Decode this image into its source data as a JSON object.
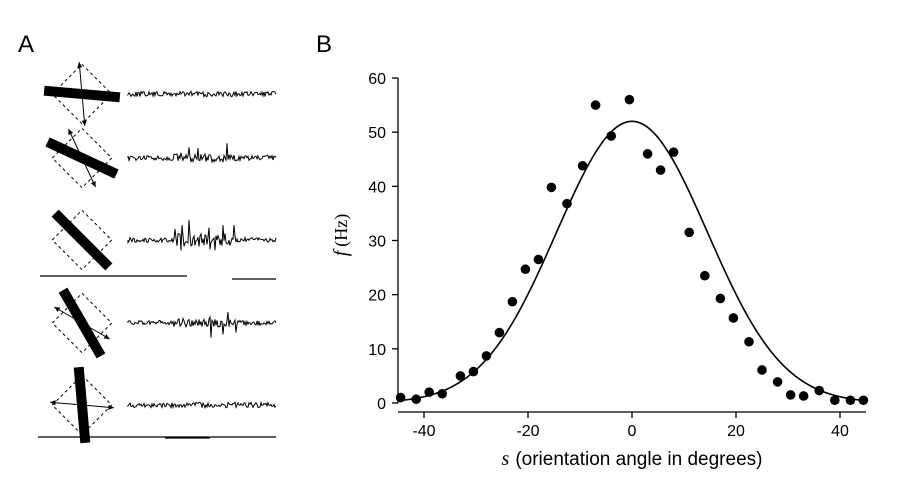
{
  "panels": {
    "a_label": "A",
    "b_label": "B"
  },
  "chart_data": {
    "type": "scatter",
    "title": "",
    "xlabel_var": "s",
    "xlabel": "(orientation angle in degrees)",
    "ylabel_var": "f",
    "ylabel_unit": "(Hz)",
    "xlim": [
      -45,
      45
    ],
    "ylim": [
      0,
      60
    ],
    "xticks": [
      -40,
      -20,
      0,
      20,
      40
    ],
    "yticks": [
      0,
      10,
      20,
      30,
      40,
      50,
      60
    ],
    "grid": false,
    "legend": "none",
    "series": [
      {
        "kind": "points",
        "x": [
          -44.5,
          -41.5,
          -39,
          -36.5,
          -33,
          -30.5,
          -28,
          -25.5,
          -23,
          -20.5,
          -18,
          -15.5,
          -12.5,
          -9.5,
          -7,
          -4,
          -0.5,
          3,
          5.5,
          8,
          11,
          14,
          17,
          19.5,
          22.5,
          25,
          28,
          30.5,
          33,
          36,
          39,
          42,
          44.5
        ],
        "y": [
          1,
          0.7,
          2,
          1.7,
          5,
          5.8,
          8.7,
          13,
          18.7,
          24.7,
          26.5,
          39.8,
          36.8,
          43.8,
          55,
          49.3,
          56,
          46,
          43,
          46.3,
          31.5,
          23.5,
          19.3,
          15.7,
          11.3,
          6.1,
          3.9,
          1.5,
          1.3,
          2.3,
          0.5,
          0.5,
          0.5
        ]
      },
      {
        "kind": "fit-curve",
        "function": "gaussian",
        "amplitude": 52,
        "center": 0,
        "sigma": 14.5
      }
    ]
  },
  "traces_a": [
    {
      "orientation_deg": 85,
      "activity": 0.05
    },
    {
      "orientation_deg": 65,
      "activity": 0.4
    },
    {
      "orientation_deg": 45,
      "activity": 1.0
    },
    {
      "orientation_deg": 30,
      "activity": 0.5
    },
    {
      "orientation_deg": 5,
      "activity": 0.05
    }
  ]
}
